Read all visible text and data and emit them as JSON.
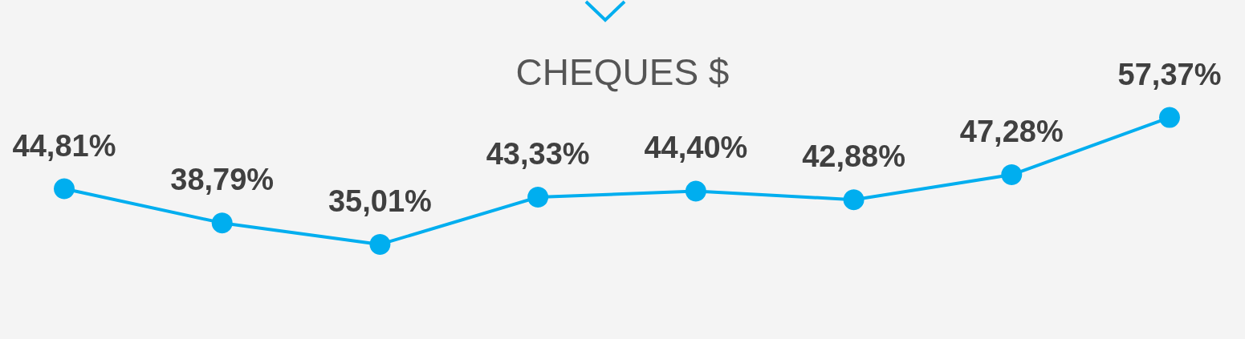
{
  "chart_data": {
    "type": "line",
    "title": "CHEQUES $",
    "categories": [
      null,
      null,
      null,
      null,
      null,
      null,
      null,
      null
    ],
    "series": [
      {
        "color": "#00aeef",
        "values": [
          44.81,
          38.79,
          35.01,
          43.33,
          44.4,
          42.88,
          47.28,
          57.37
        ],
        "value_labels": [
          "44,81%",
          "38,79%",
          "35,01%",
          "43,33%",
          "44,40%",
          "42,88%",
          "47,28%",
          "57,37%"
        ]
      }
    ],
    "marker": "circle",
    "line_style": "solid",
    "tick_labels": false
  }
}
